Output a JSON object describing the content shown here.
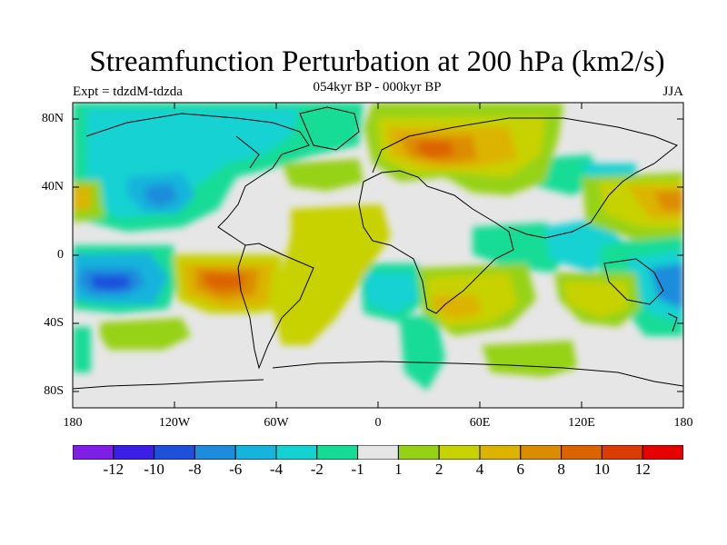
{
  "header": {
    "title": "Streamfunction Perturbation at 200 hPa (km2/s)",
    "subtitle": "054kyr BP - 000kyr BP",
    "expt": "Expt = tdzdM-tdzda",
    "season": "JJA"
  },
  "axes": {
    "y_ticks": [
      "80N",
      "40N",
      "0",
      "40S",
      "80S"
    ],
    "x_ticks": [
      "180",
      "120W",
      "60W",
      "0",
      "60E",
      "120E",
      "180"
    ]
  },
  "colorbar": {
    "labels": [
      "-12",
      "-10",
      "-8",
      "-6",
      "-4",
      "-2",
      "-1",
      "1",
      "2",
      "4",
      "6",
      "8",
      "10",
      "12"
    ],
    "colors": [
      "#7f1ee6",
      "#3c1ee6",
      "#1e50dc",
      "#1e8cdc",
      "#14b4dc",
      "#14d2d2",
      "#14dc96",
      "#e6e6e6",
      "#96d214",
      "#c8d200",
      "#dcb400",
      "#dc8c00",
      "#dc6400",
      "#dc3c00",
      "#e60000"
    ]
  },
  "map": {
    "projection": "cylindrical-equidistant",
    "lon_range": [
      -180,
      180
    ],
    "lat_range": [
      -90,
      90
    ],
    "field": "streamfunction perturbation",
    "level": "200 hPa",
    "units": "km2/s"
  }
}
